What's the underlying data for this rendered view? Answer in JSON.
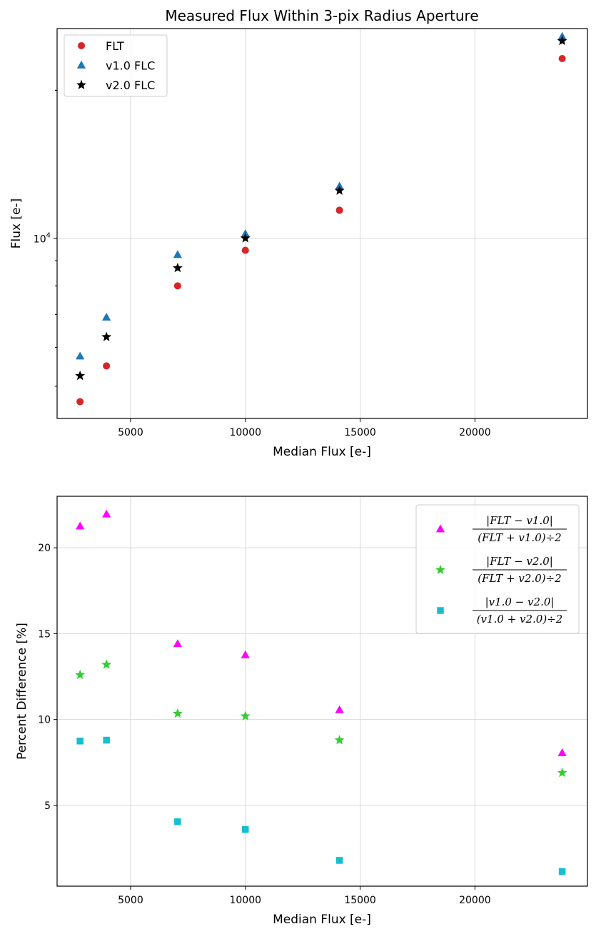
{
  "chart_data": [
    {
      "type": "scatter",
      "title": "Measured Flux Within 3-pix Radius Aperture",
      "xlabel": "Median Flux [e-]",
      "ylabel": "Flux [e-]",
      "xscale": "linear",
      "yscale": "log",
      "xlim": [
        1800,
        24900
      ],
      "ylim": [
        4300,
        26700
      ],
      "xticks": [
        5000,
        10000,
        15000,
        20000
      ],
      "xtick_labels": [
        "5000",
        "10000",
        "15000",
        "20000"
      ],
      "ytick_labels": [
        {
          "base": "10",
          "exp": "4",
          "value": 10000
        }
      ],
      "grid": true,
      "legend_position": "upper-left",
      "series": [
        {
          "name": "FLT",
          "marker": "circle",
          "color": "#d62728",
          "points": [
            [
              2800,
              4650
            ],
            [
              3950,
              5500
            ],
            [
              7050,
              8000
            ],
            [
              10000,
              9450
            ],
            [
              14100,
              11400
            ],
            [
              23800,
              23200
            ]
          ]
        },
        {
          "name": "v1.0 FLC",
          "marker": "triangle",
          "color": "#1f77b4",
          "points": [
            [
              2800,
              5750
            ],
            [
              3950,
              6900
            ],
            [
              7050,
              9250
            ],
            [
              10000,
              10200
            ],
            [
              14100,
              12750
            ],
            [
              23800,
              25700
            ]
          ]
        },
        {
          "name": "v2.0 FLC",
          "marker": "star",
          "color": "#000000",
          "points": [
            [
              2800,
              5250
            ],
            [
              3950,
              6300
            ],
            [
              7050,
              8700
            ],
            [
              10000,
              10000
            ],
            [
              14100,
              12500
            ],
            [
              23800,
              25200
            ]
          ]
        }
      ]
    },
    {
      "type": "scatter",
      "title": "",
      "xlabel": "Median Flux [e-]",
      "ylabel": "Percent Difference [%]",
      "xscale": "linear",
      "yscale": "linear",
      "xlim": [
        1800,
        24900
      ],
      "ylim": [
        0.3,
        23.0
      ],
      "xticks": [
        5000,
        10000,
        15000,
        20000
      ],
      "xtick_labels": [
        "5000",
        "10000",
        "15000",
        "20000"
      ],
      "yticks": [
        5,
        10,
        15,
        20
      ],
      "ytick_labels": [
        "5",
        "10",
        "15",
        "20"
      ],
      "grid": true,
      "legend_position": "upper-right",
      "series": [
        {
          "label_num": "|FLT − v1.0|",
          "label_den": "(FLT + v1.0)÷2",
          "marker": "triangle",
          "color": "#ff00ff",
          "points": [
            [
              2800,
              21.25
            ],
            [
              3950,
              21.95
            ],
            [
              7050,
              14.4
            ],
            [
              10000,
              13.75
            ],
            [
              14100,
              10.55
            ],
            [
              23800,
              8.05
            ]
          ]
        },
        {
          "label_num": "|FLT − v2.0|",
          "label_den": "(FLT + v2.0)÷2",
          "marker": "star",
          "color": "#32cd32",
          "points": [
            [
              2800,
              12.6
            ],
            [
              3950,
              13.2
            ],
            [
              7050,
              10.35
            ],
            [
              10000,
              10.2
            ],
            [
              14100,
              8.8
            ],
            [
              23800,
              6.9
            ]
          ]
        },
        {
          "label_num": "|v1.0 − v2.0|",
          "label_den": "(v1.0 + v2.0)÷2",
          "marker": "square",
          "color": "#17becf",
          "points": [
            [
              2800,
              8.75
            ],
            [
              3950,
              8.8
            ],
            [
              7050,
              4.05
            ],
            [
              10000,
              3.6
            ],
            [
              14100,
              1.8
            ],
            [
              23800,
              1.15
            ]
          ]
        }
      ]
    }
  ]
}
